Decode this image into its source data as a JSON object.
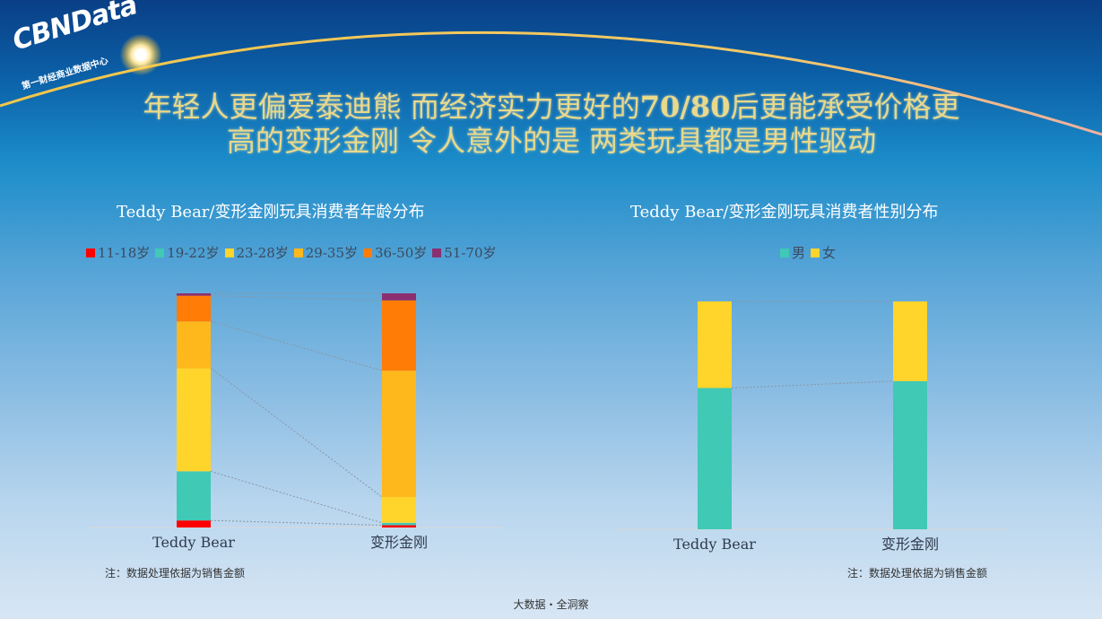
{
  "logo": {
    "name": "CBNData",
    "subtitle": "第一财经商业数据中心"
  },
  "headline": {
    "line1_a": "年轻人更偏爱泰迪熊 而经济实力更好的",
    "line1_b": "70/80",
    "line1_c": "后更能承受价格更",
    "line2": "高的变形金刚 令人意外的是 两类玩具都是男性驱动"
  },
  "notes": {
    "left": "注：数据处理依据为销售金额",
    "right": "注：数据处理依据为销售金额"
  },
  "footer": "大数据・全洞察",
  "colors": {
    "headline": "#e9d98a",
    "accent": "#f3c64a"
  },
  "chart_data": [
    {
      "type": "bar",
      "stacked": true,
      "percent": true,
      "title": "Teddy Bear/变形金刚玩具消费者年龄分布",
      "legend_position": "top",
      "categories": [
        "Teddy Bear",
        "变形金刚"
      ],
      "series": [
        {
          "name": "11-18岁",
          "color": "#ff0000",
          "values": [
            3,
            1
          ]
        },
        {
          "name": "19-22岁",
          "color": "#40c9b5",
          "values": [
            21,
            1
          ]
        },
        {
          "name": "23-28岁",
          "color": "#ffd42b",
          "values": [
            44,
            11
          ]
        },
        {
          "name": "29-35岁",
          "color": "#ffb81c",
          "values": [
            20,
            54
          ]
        },
        {
          "name": "36-50岁",
          "color": "#ff7c06",
          "values": [
            11,
            30
          ]
        },
        {
          "name": "51-70岁",
          "color": "#8c2f6f",
          "values": [
            1,
            3
          ]
        }
      ],
      "ylim": [
        0,
        100
      ],
      "grid": false,
      "connector_lines": true
    },
    {
      "type": "bar",
      "stacked": true,
      "percent": true,
      "title": "Teddy Bear/变形金刚玩具消费者性别分布",
      "legend_position": "top",
      "categories": [
        "Teddy Bear",
        "变形金刚"
      ],
      "series": [
        {
          "name": "男",
          "color": "#40c9b5",
          "values": [
            62,
            65
          ]
        },
        {
          "name": "女",
          "color": "#ffd42b",
          "values": [
            38,
            35
          ]
        }
      ],
      "ylim": [
        0,
        100
      ],
      "grid": false,
      "connector_lines": true
    }
  ]
}
